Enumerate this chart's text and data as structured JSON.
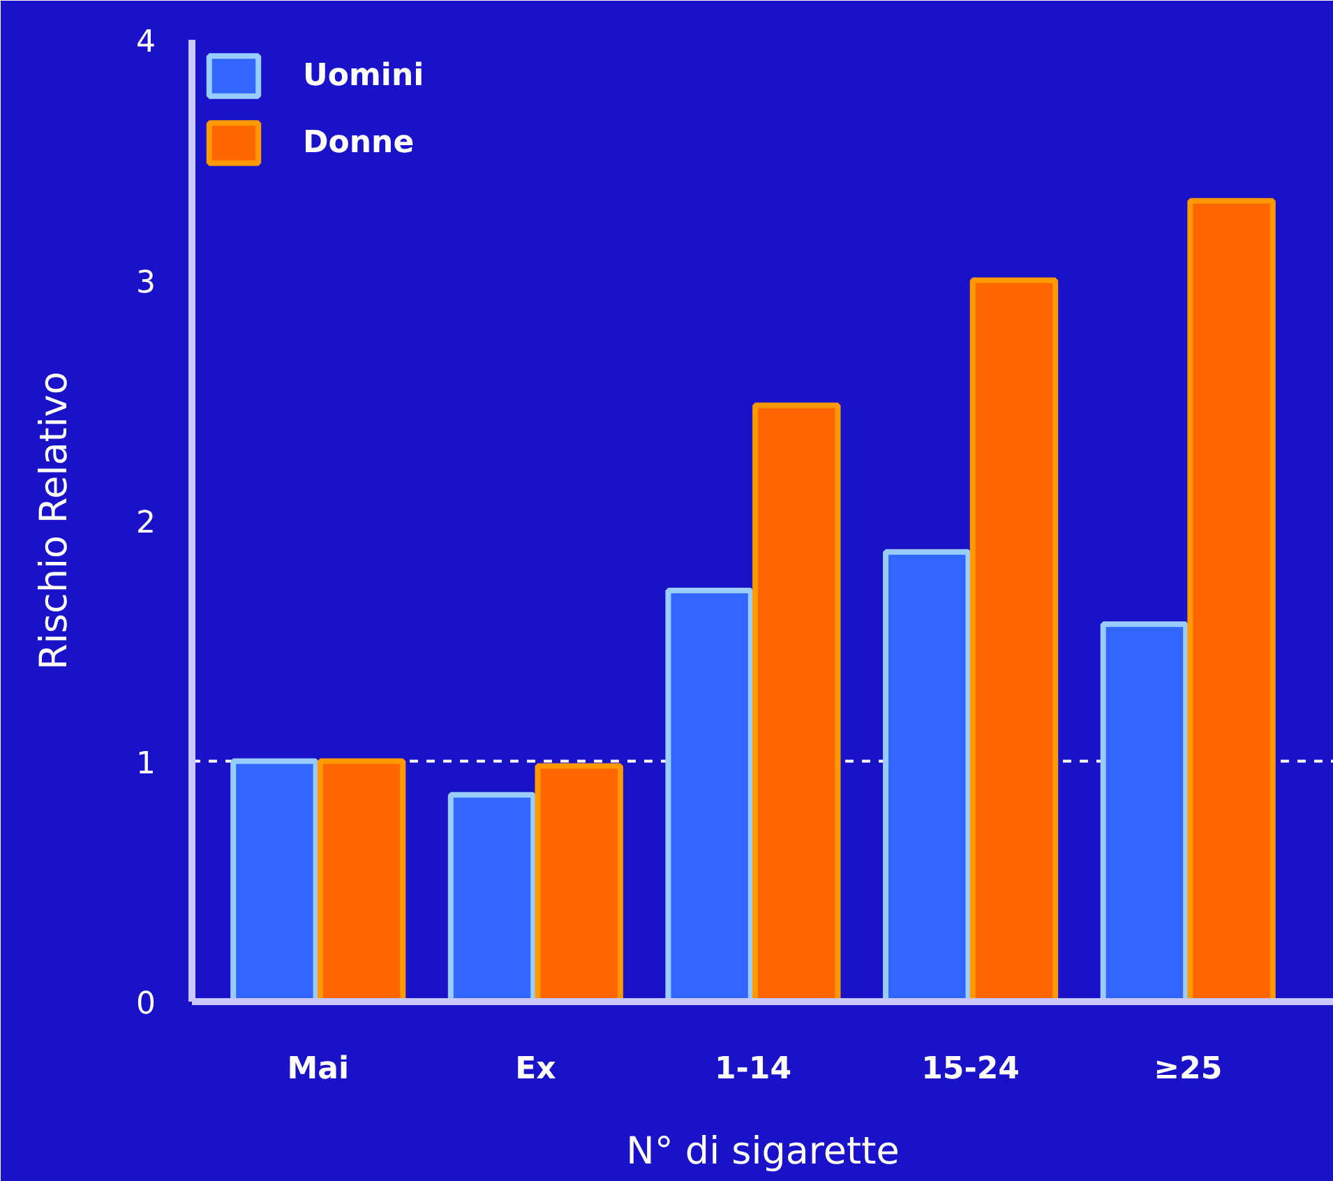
{
  "chart_data": {
    "type": "bar",
    "xlabel": "N° di sigarette",
    "ylabel": "Rischio Relativo",
    "categories": [
      "Mai",
      "Ex",
      "1-14",
      "15-24",
      "≥25"
    ],
    "series": [
      {
        "name": "Uomini",
        "color": "#3366ff",
        "values": [
          1.0,
          0.86,
          1.71,
          1.87,
          1.57
        ]
      },
      {
        "name": "Donne",
        "color": "#ff6600",
        "values": [
          1.0,
          0.98,
          2.48,
          3.0,
          3.33
        ]
      }
    ],
    "ylim": [
      0,
      4
    ],
    "yticks": [
      0,
      1,
      2,
      3,
      4
    ],
    "grid": false,
    "legend": "top left",
    "ref_lines": [
      {
        "axis": "y",
        "value": 1,
        "color": "#ffffff",
        "line_style": "dashed"
      }
    ]
  }
}
